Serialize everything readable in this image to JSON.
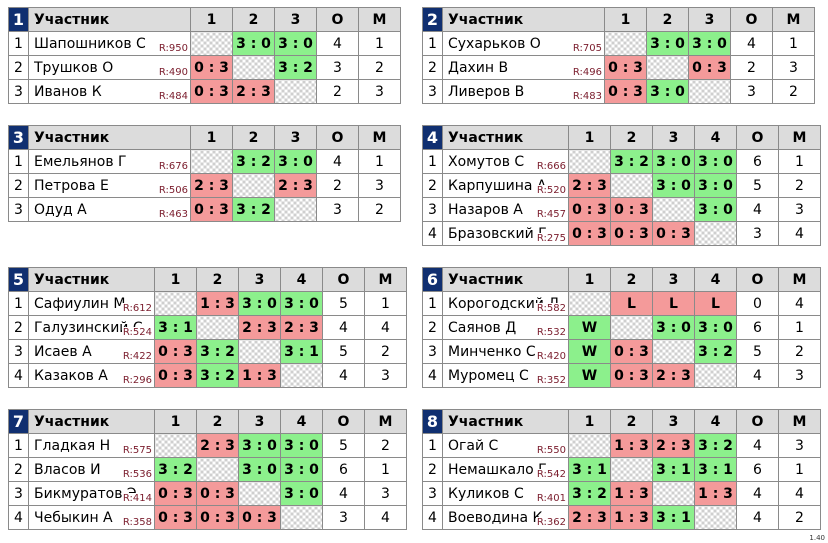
{
  "version": "1.40",
  "groups": [
    {
      "no": "1",
      "name_header": "Участник",
      "cols": [
        "1",
        "2",
        "3"
      ],
      "o_header": "О",
      "m_header": "М",
      "rows": [
        {
          "no": "1",
          "name": "Шапошников С",
          "rating": "R:950",
          "cells": [
            {
              "t": "x",
              "v": ""
            },
            {
              "t": "w",
              "v": "3 : 0"
            },
            {
              "t": "w",
              "v": "3 : 0"
            }
          ],
          "o": "4",
          "m": "1"
        },
        {
          "no": "2",
          "name": "Трушков О",
          "rating": "R:490",
          "cells": [
            {
              "t": "l",
              "v": "0 : 3"
            },
            {
              "t": "x",
              "v": ""
            },
            {
              "t": "w",
              "v": "3 : 2"
            }
          ],
          "o": "3",
          "m": "2"
        },
        {
          "no": "3",
          "name": "Иванов К",
          "rating": "R:484",
          "cells": [
            {
              "t": "l",
              "v": "0 : 3"
            },
            {
              "t": "l",
              "v": "2 : 3"
            },
            {
              "t": "x",
              "v": ""
            }
          ],
          "o": "2",
          "m": "3"
        }
      ]
    },
    {
      "no": "2",
      "name_header": "Участник",
      "cols": [
        "1",
        "2",
        "3"
      ],
      "o_header": "О",
      "m_header": "М",
      "rows": [
        {
          "no": "1",
          "name": "Сухарьков О",
          "rating": "R:705",
          "cells": [
            {
              "t": "x",
              "v": ""
            },
            {
              "t": "w",
              "v": "3 : 0"
            },
            {
              "t": "w",
              "v": "3 : 0"
            }
          ],
          "o": "4",
          "m": "1"
        },
        {
          "no": "2",
          "name": "Дахин В",
          "rating": "R:496",
          "cells": [
            {
              "t": "l",
              "v": "0 : 3"
            },
            {
              "t": "x",
              "v": ""
            },
            {
              "t": "l",
              "v": "0 : 3"
            }
          ],
          "o": "2",
          "m": "3"
        },
        {
          "no": "3",
          "name": "Ливеров В",
          "rating": "R:483",
          "cells": [
            {
              "t": "l",
              "v": "0 : 3"
            },
            {
              "t": "w",
              "v": "3 : 0"
            },
            {
              "t": "x",
              "v": ""
            }
          ],
          "o": "3",
          "m": "2"
        }
      ]
    },
    {
      "no": "3",
      "name_header": "Участник",
      "cols": [
        "1",
        "2",
        "3"
      ],
      "o_header": "О",
      "m_header": "М",
      "rows": [
        {
          "no": "1",
          "name": "Емельянов Г",
          "rating": "R:676",
          "cells": [
            {
              "t": "x",
              "v": ""
            },
            {
              "t": "w",
              "v": "3 : 2"
            },
            {
              "t": "w",
              "v": "3 : 0"
            }
          ],
          "o": "4",
          "m": "1"
        },
        {
          "no": "2",
          "name": "Петрова Е",
          "rating": "R:506",
          "cells": [
            {
              "t": "l",
              "v": "2 : 3"
            },
            {
              "t": "x",
              "v": ""
            },
            {
              "t": "l",
              "v": "2 : 3"
            }
          ],
          "o": "2",
          "m": "3"
        },
        {
          "no": "3",
          "name": "Одуд А",
          "rating": "R:463",
          "cells": [
            {
              "t": "l",
              "v": "0 : 3"
            },
            {
              "t": "w",
              "v": "3 : 2"
            },
            {
              "t": "x",
              "v": ""
            }
          ],
          "o": "3",
          "m": "2"
        }
      ]
    },
    {
      "no": "4",
      "name_header": "Участник",
      "cols": [
        "1",
        "2",
        "3",
        "4"
      ],
      "o_header": "О",
      "m_header": "М",
      "rows": [
        {
          "no": "1",
          "name": "Хомутов С",
          "rating": "R:666",
          "cells": [
            {
              "t": "x",
              "v": ""
            },
            {
              "t": "w",
              "v": "3 : 2"
            },
            {
              "t": "w",
              "v": "3 : 0"
            },
            {
              "t": "w",
              "v": "3 : 0"
            }
          ],
          "o": "6",
          "m": "1"
        },
        {
          "no": "2",
          "name": "Карпушина А",
          "rating": "R:520",
          "cells": [
            {
              "t": "l",
              "v": "2 : 3"
            },
            {
              "t": "x",
              "v": ""
            },
            {
              "t": "w",
              "v": "3 : 0"
            },
            {
              "t": "w",
              "v": "3 : 0"
            }
          ],
          "o": "5",
          "m": "2"
        },
        {
          "no": "3",
          "name": "Назаров А",
          "rating": "R:457",
          "cells": [
            {
              "t": "l",
              "v": "0 : 3"
            },
            {
              "t": "l",
              "v": "0 : 3"
            },
            {
              "t": "x",
              "v": ""
            },
            {
              "t": "w",
              "v": "3 : 0"
            }
          ],
          "o": "4",
          "m": "3"
        },
        {
          "no": "4",
          "name": "Бразовский Г",
          "rating": "R:275",
          "cells": [
            {
              "t": "l",
              "v": "0 : 3"
            },
            {
              "t": "l",
              "v": "0 : 3"
            },
            {
              "t": "l",
              "v": "0 : 3"
            },
            {
              "t": "x",
              "v": ""
            }
          ],
          "o": "3",
          "m": "4"
        }
      ]
    },
    {
      "no": "5",
      "name_header": "Участник",
      "cols": [
        "1",
        "2",
        "3",
        "4"
      ],
      "o_header": "О",
      "m_header": "М",
      "rows": [
        {
          "no": "1",
          "name": "Сафиулин М",
          "rating": "R:612",
          "cells": [
            {
              "t": "x",
              "v": ""
            },
            {
              "t": "l",
              "v": "1 : 3"
            },
            {
              "t": "w",
              "v": "3 : 0"
            },
            {
              "t": "w",
              "v": "3 : 0"
            }
          ],
          "o": "5",
          "m": "1"
        },
        {
          "no": "2",
          "name": "Галузинский С",
          "rating": "R:524",
          "cells": [
            {
              "t": "w",
              "v": "3 : 1"
            },
            {
              "t": "x",
              "v": ""
            },
            {
              "t": "l",
              "v": "2 : 3"
            },
            {
              "t": "l",
              "v": "2 : 3"
            }
          ],
          "o": "4",
          "m": "4"
        },
        {
          "no": "3",
          "name": "Исаев А",
          "rating": "R:422",
          "cells": [
            {
              "t": "l",
              "v": "0 : 3"
            },
            {
              "t": "w",
              "v": "3 : 2"
            },
            {
              "t": "x",
              "v": ""
            },
            {
              "t": "w",
              "v": "3 : 1"
            }
          ],
          "o": "5",
          "m": "2"
        },
        {
          "no": "4",
          "name": "Казаков А",
          "rating": "R:296",
          "cells": [
            {
              "t": "l",
              "v": "0 : 3"
            },
            {
              "t": "w",
              "v": "3 : 2"
            },
            {
              "t": "l",
              "v": "1 : 3"
            },
            {
              "t": "x",
              "v": ""
            }
          ],
          "o": "4",
          "m": "3"
        }
      ]
    },
    {
      "no": "6",
      "name_header": "Участник",
      "cols": [
        "1",
        "2",
        "3",
        "4"
      ],
      "o_header": "О",
      "m_header": "М",
      "rows": [
        {
          "no": "1",
          "name": "Корогодский Д",
          "rating": "R:582",
          "cells": [
            {
              "t": "x",
              "v": ""
            },
            {
              "t": "l",
              "v": "L"
            },
            {
              "t": "l",
              "v": "L"
            },
            {
              "t": "l",
              "v": "L"
            }
          ],
          "o": "0",
          "m": "4"
        },
        {
          "no": "2",
          "name": "Саянов Д",
          "rating": "R:532",
          "cells": [
            {
              "t": "w",
              "v": "W"
            },
            {
              "t": "x",
              "v": ""
            },
            {
              "t": "w",
              "v": "3 : 0"
            },
            {
              "t": "w",
              "v": "3 : 0"
            }
          ],
          "o": "6",
          "m": "1"
        },
        {
          "no": "3",
          "name": "Минченко С",
          "rating": "R:420",
          "cells": [
            {
              "t": "w",
              "v": "W"
            },
            {
              "t": "l",
              "v": "0 : 3"
            },
            {
              "t": "x",
              "v": ""
            },
            {
              "t": "w",
              "v": "3 : 2"
            }
          ],
          "o": "5",
          "m": "2"
        },
        {
          "no": "4",
          "name": "Муромец С",
          "rating": "R:352",
          "cells": [
            {
              "t": "w",
              "v": "W"
            },
            {
              "t": "l",
              "v": "0 : 3"
            },
            {
              "t": "l",
              "v": "2 : 3"
            },
            {
              "t": "x",
              "v": ""
            }
          ],
          "o": "4",
          "m": "3"
        }
      ]
    },
    {
      "no": "7",
      "name_header": "Участник",
      "cols": [
        "1",
        "2",
        "3",
        "4"
      ],
      "o_header": "О",
      "m_header": "М",
      "rows": [
        {
          "no": "1",
          "name": "Гладкая Н",
          "rating": "R:575",
          "cells": [
            {
              "t": "x",
              "v": ""
            },
            {
              "t": "l",
              "v": "2 : 3"
            },
            {
              "t": "w",
              "v": "3 : 0"
            },
            {
              "t": "w",
              "v": "3 : 0"
            }
          ],
          "o": "5",
          "m": "2"
        },
        {
          "no": "2",
          "name": "Власов И",
          "rating": "R:536",
          "cells": [
            {
              "t": "w",
              "v": "3 : 2"
            },
            {
              "t": "x",
              "v": ""
            },
            {
              "t": "w",
              "v": "3 : 0"
            },
            {
              "t": "w",
              "v": "3 : 0"
            }
          ],
          "o": "6",
          "m": "1"
        },
        {
          "no": "3",
          "name": "Бикмуратов Э",
          "rating": "R:414",
          "cells": [
            {
              "t": "l",
              "v": "0 : 3"
            },
            {
              "t": "l",
              "v": "0 : 3"
            },
            {
              "t": "x",
              "v": ""
            },
            {
              "t": "w",
              "v": "3 : 0"
            }
          ],
          "o": "4",
          "m": "3"
        },
        {
          "no": "4",
          "name": "Чебыкин А",
          "rating": "R:358",
          "cells": [
            {
              "t": "l",
              "v": "0 : 3"
            },
            {
              "t": "l",
              "v": "0 : 3"
            },
            {
              "t": "l",
              "v": "0 : 3"
            },
            {
              "t": "x",
              "v": ""
            }
          ],
          "o": "3",
          "m": "4"
        }
      ]
    },
    {
      "no": "8",
      "name_header": "Участник",
      "cols": [
        "1",
        "2",
        "3",
        "4"
      ],
      "o_header": "О",
      "m_header": "М",
      "rows": [
        {
          "no": "1",
          "name": "Огай С",
          "rating": "R:550",
          "cells": [
            {
              "t": "x",
              "v": ""
            },
            {
              "t": "l",
              "v": "1 : 3"
            },
            {
              "t": "l",
              "v": "2 : 3"
            },
            {
              "t": "w",
              "v": "3 : 2"
            }
          ],
          "o": "4",
          "m": "3"
        },
        {
          "no": "2",
          "name": "Немашкало Г",
          "rating": "R:542",
          "cells": [
            {
              "t": "w",
              "v": "3 : 1"
            },
            {
              "t": "x",
              "v": ""
            },
            {
              "t": "w",
              "v": "3 : 1"
            },
            {
              "t": "w",
              "v": "3 : 1"
            }
          ],
          "o": "6",
          "m": "1"
        },
        {
          "no": "3",
          "name": "Куликов С",
          "rating": "R:401",
          "cells": [
            {
              "t": "w",
              "v": "3 : 2"
            },
            {
              "t": "l",
              "v": "1 : 3"
            },
            {
              "t": "x",
              "v": ""
            },
            {
              "t": "l",
              "v": "1 : 3"
            }
          ],
          "o": "4",
          "m": "4"
        },
        {
          "no": "4",
          "name": "Воеводина К",
          "rating": "R:362",
          "cells": [
            {
              "t": "l",
              "v": "2 : 3"
            },
            {
              "t": "l",
              "v": "1 : 3"
            },
            {
              "t": "w",
              "v": "3 : 1"
            },
            {
              "t": "x",
              "v": ""
            }
          ],
          "o": "4",
          "m": "2"
        }
      ]
    }
  ]
}
